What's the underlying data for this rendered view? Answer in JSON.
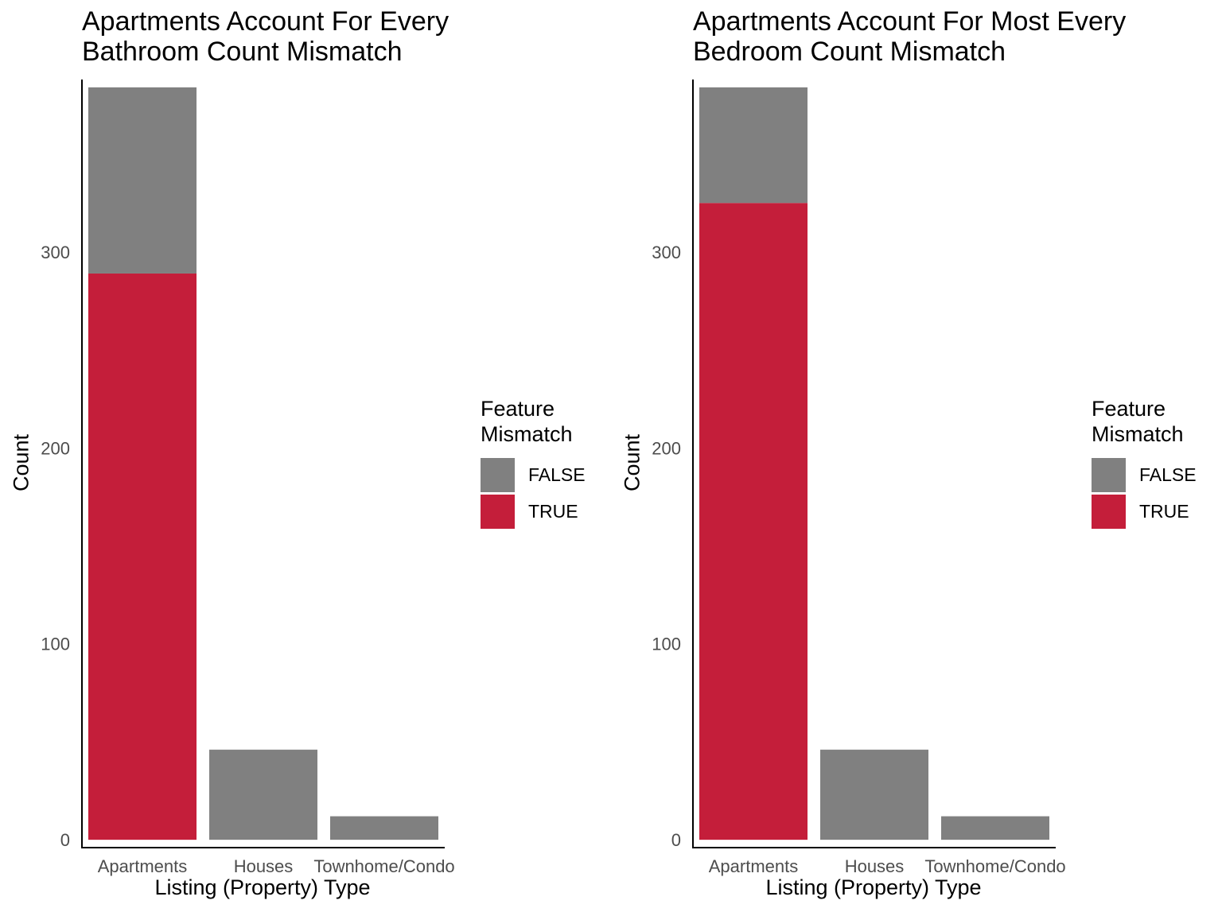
{
  "colors": {
    "FALSE": "#808080",
    "TRUE": "#C41E3A",
    "axis": "#000000",
    "tick_text": "#4d4d4d"
  },
  "chart_data": [
    {
      "type": "bar",
      "stacked": true,
      "title_line1": "Apartments Account For Every",
      "title_line2": "Bathroom Count Mismatch",
      "xlabel": "Listing (Property) Type",
      "ylabel": "Count",
      "categories": [
        "Apartments",
        "Houses",
        "Townhome/Condo"
      ],
      "series": [
        {
          "name": "FALSE",
          "values": [
            95,
            46,
            12
          ]
        },
        {
          "name": "TRUE",
          "values": [
            289,
            0,
            0
          ]
        }
      ],
      "yticks": [
        0,
        100,
        200,
        300
      ],
      "ylim": [
        -4,
        388
      ],
      "grid": false,
      "legend": {
        "title_line1": "Feature",
        "title_line2": "Mismatch",
        "position": "right",
        "items": [
          "FALSE",
          "TRUE"
        ]
      }
    },
    {
      "type": "bar",
      "stacked": true,
      "title_line1": "Apartments Account For Most Every",
      "title_line2": "Bedroom Count Mismatch",
      "xlabel": "Listing (Property) Type",
      "ylabel": "Count",
      "categories": [
        "Apartments",
        "Houses",
        "Townhome/Condo"
      ],
      "series": [
        {
          "name": "FALSE",
          "values": [
            59,
            46,
            12
          ]
        },
        {
          "name": "TRUE",
          "values": [
            325,
            0,
            0
          ]
        }
      ],
      "yticks": [
        0,
        100,
        200,
        300
      ],
      "ylim": [
        -4,
        388
      ],
      "grid": false,
      "legend": {
        "title_line1": "Feature",
        "title_line2": "Mismatch",
        "position": "right",
        "items": [
          "FALSE",
          "TRUE"
        ]
      }
    }
  ]
}
